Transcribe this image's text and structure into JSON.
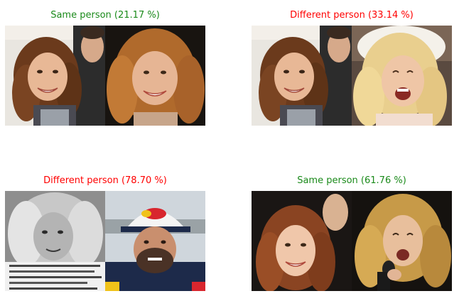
{
  "figure": {
    "panels": [
      {
        "title": "Same person (21.17 %)",
        "verdict": "same",
        "score_percent": 21.17,
        "title_color": "#1a8a1a",
        "left_face": "face-photo-curly-brown-hair-woman-smiling",
        "right_face": "face-photo-curly-blonde-hair-woman-smiling"
      },
      {
        "title": "Different person (33.14 %)",
        "verdict": "different",
        "score_percent": 33.14,
        "title_color": "#ff0000",
        "left_face": "face-photo-curly-brown-hair-woman-smiling",
        "right_face": "face-photo-blonde-woman-laughing-veil"
      },
      {
        "title": "Different person (78.70 %)",
        "verdict": "different",
        "score_percent": 78.7,
        "title_color": "#ff0000",
        "left_face": "face-photo-grayscale-curly-hair-woman",
        "right_face": "face-photo-man-red-cap-beard"
      },
      {
        "title": "Same person (61.76 %)",
        "verdict": "same",
        "score_percent": 61.76,
        "title_color": "#1a8a1a",
        "left_face": "face-photo-red-hair-woman-smiling",
        "right_face": "face-photo-blonde-woman-singing-microphone"
      }
    ]
  }
}
